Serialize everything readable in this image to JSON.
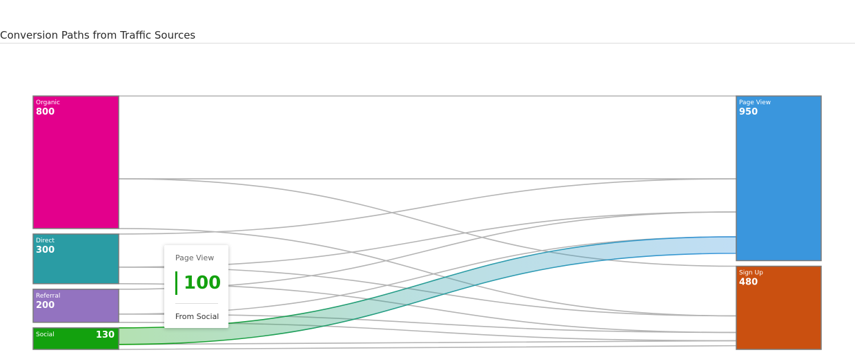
{
  "title": "Conversion Paths from Traffic Sources",
  "colors": {
    "organic": "#e3008c",
    "direct": "#2a9ca4",
    "referral": "#9373c0",
    "social": "#13a10e",
    "page_view": "#3a96dd",
    "sign_up": "#ca5010",
    "link": "#b4b4b4"
  },
  "chart_data": {
    "type": "sankey",
    "title": "Conversion Paths from Traffic Sources",
    "sources": [
      {
        "name": "Organic",
        "value": 800,
        "color": "#e3008c"
      },
      {
        "name": "Direct",
        "value": 300,
        "color": "#2a9ca4"
      },
      {
        "name": "Referral",
        "value": 200,
        "color": "#9373c0"
      },
      {
        "name": "Social",
        "value": 130,
        "color": "#13a10e"
      }
    ],
    "targets": [
      {
        "name": "Page View",
        "value": 950,
        "color": "#3a96dd"
      },
      {
        "name": "Sign Up",
        "value": 480,
        "color": "#ca5010"
      }
    ],
    "links": [
      {
        "source": "Organic",
        "target": "Page View",
        "value": 500
      },
      {
        "source": "Organic",
        "target": "Sign Up",
        "value": 300
      },
      {
        "source": "Direct",
        "target": "Page View",
        "value": 200
      },
      {
        "source": "Direct",
        "target": "Sign Up",
        "value": 100
      },
      {
        "source": "Referral",
        "target": "Page View",
        "value": 150
      },
      {
        "source": "Referral",
        "target": "Sign Up",
        "value": 50
      },
      {
        "source": "Social",
        "target": "Page View",
        "value": 100
      },
      {
        "source": "Social",
        "target": "Sign Up",
        "value": 30
      }
    ],
    "highlighted_link": {
      "source": "Social",
      "target": "Page View",
      "value": 100
    }
  },
  "tooltip": {
    "target": "Page View",
    "value": "100",
    "source": "From Social"
  }
}
